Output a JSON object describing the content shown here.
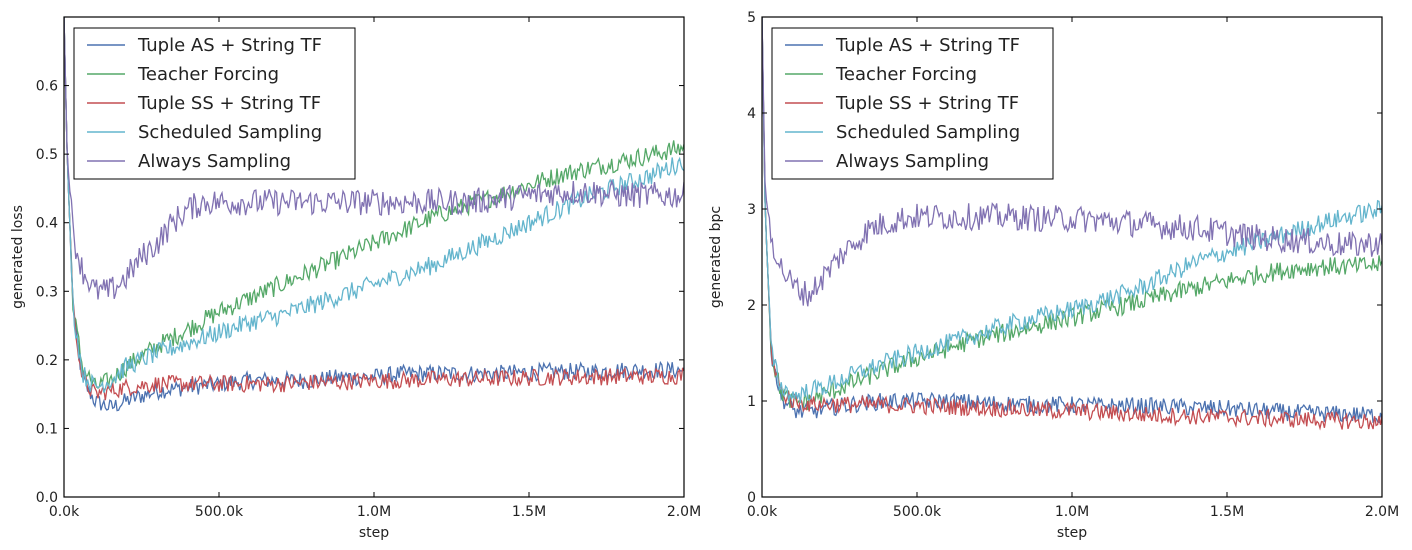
{
  "chart_data": [
    {
      "type": "line",
      "xlabel": "step",
      "ylabel": "generated loss",
      "xlim": [
        0,
        2000000
      ],
      "ylim": [
        0,
        0.7
      ],
      "xticks": [
        0,
        500000,
        1000000,
        1500000,
        2000000
      ],
      "xtick_labels": [
        "0.0k",
        "500.0k",
        "1.0M",
        "1.5M",
        "2.0M"
      ],
      "yticks": [
        0.0,
        0.1,
        0.2,
        0.3,
        0.4,
        0.5,
        0.6
      ],
      "ytick_labels": [
        "0.0",
        "0.1",
        "0.2",
        "0.3",
        "0.4",
        "0.5",
        "0.6"
      ],
      "legend_position": "upper-left",
      "series": [
        {
          "name": "Tuple AS + String TF",
          "color": "#4c72b0",
          "x": [
            0,
            10000,
            30000,
            60000,
            100000,
            150000,
            200000,
            300000,
            400000,
            500000,
            600000,
            700000,
            800000,
            900000,
            1000000,
            1100000,
            1200000,
            1300000,
            1400000,
            1500000,
            1600000,
            1700000,
            1800000,
            1900000,
            2000000
          ],
          "y": [
            0.7,
            0.5,
            0.27,
            0.17,
            0.14,
            0.13,
            0.14,
            0.155,
            0.16,
            0.165,
            0.17,
            0.17,
            0.17,
            0.175,
            0.175,
            0.18,
            0.18,
            0.18,
            0.18,
            0.182,
            0.183,
            0.183,
            0.185,
            0.185,
            0.185
          ]
        },
        {
          "name": "Teacher Forcing",
          "color": "#55a868",
          "x": [
            0,
            10000,
            30000,
            60000,
            100000,
            150000,
            200000,
            300000,
            400000,
            500000,
            600000,
            700000,
            800000,
            900000,
            1000000,
            1100000,
            1200000,
            1300000,
            1400000,
            1500000,
            1600000,
            1700000,
            1800000,
            1900000,
            2000000
          ],
          "y": [
            0.7,
            0.5,
            0.27,
            0.19,
            0.16,
            0.17,
            0.19,
            0.22,
            0.245,
            0.27,
            0.29,
            0.31,
            0.33,
            0.35,
            0.37,
            0.39,
            0.41,
            0.425,
            0.44,
            0.455,
            0.47,
            0.48,
            0.49,
            0.5,
            0.51
          ]
        },
        {
          "name": "Tuple SS + String TF",
          "color": "#c44e52",
          "x": [
            0,
            10000,
            30000,
            60000,
            100000,
            150000,
            200000,
            300000,
            400000,
            500000,
            600000,
            700000,
            800000,
            900000,
            1000000,
            1100000,
            1200000,
            1300000,
            1400000,
            1500000,
            1600000,
            1700000,
            1800000,
            1900000,
            2000000
          ],
          "y": [
            0.7,
            0.5,
            0.27,
            0.17,
            0.15,
            0.155,
            0.16,
            0.165,
            0.165,
            0.165,
            0.165,
            0.165,
            0.167,
            0.168,
            0.17,
            0.17,
            0.172,
            0.172,
            0.173,
            0.174,
            0.175,
            0.175,
            0.176,
            0.176,
            0.177
          ]
        },
        {
          "name": "Scheduled Sampling",
          "color": "#64b5cd",
          "x": [
            0,
            10000,
            30000,
            60000,
            100000,
            150000,
            200000,
            300000,
            400000,
            500000,
            600000,
            700000,
            800000,
            900000,
            1000000,
            1100000,
            1200000,
            1300000,
            1400000,
            1500000,
            1600000,
            1700000,
            1800000,
            1900000,
            2000000
          ],
          "y": [
            0.7,
            0.5,
            0.27,
            0.18,
            0.16,
            0.17,
            0.19,
            0.21,
            0.225,
            0.24,
            0.255,
            0.265,
            0.28,
            0.295,
            0.31,
            0.325,
            0.34,
            0.36,
            0.38,
            0.4,
            0.42,
            0.44,
            0.455,
            0.47,
            0.49
          ]
        },
        {
          "name": "Always Sampling",
          "color": "#8172b2",
          "x": [
            0,
            10000,
            30000,
            60000,
            100000,
            150000,
            200000,
            250000,
            300000,
            350000,
            400000,
            450000,
            500000,
            600000,
            700000,
            800000,
            900000,
            1000000,
            1100000,
            1200000,
            1300000,
            1400000,
            1500000,
            1600000,
            1700000,
            1800000,
            1900000,
            2000000
          ],
          "y": [
            0.7,
            0.5,
            0.38,
            0.33,
            0.3,
            0.3,
            0.32,
            0.35,
            0.37,
            0.4,
            0.42,
            0.43,
            0.43,
            0.43,
            0.43,
            0.43,
            0.43,
            0.43,
            0.43,
            0.43,
            0.43,
            0.435,
            0.44,
            0.445,
            0.445,
            0.44,
            0.44,
            0.44
          ]
        }
      ]
    },
    {
      "type": "line",
      "xlabel": "step",
      "ylabel": "generated bpc",
      "xlim": [
        0,
        2000000
      ],
      "ylim": [
        0,
        5
      ],
      "xticks": [
        0,
        500000,
        1000000,
        1500000,
        2000000
      ],
      "xtick_labels": [
        "0.0k",
        "500.0k",
        "1.0M",
        "1.5M",
        "2.0M"
      ],
      "yticks": [
        0,
        1,
        2,
        3,
        4,
        5
      ],
      "ytick_labels": [
        "0",
        "1",
        "2",
        "3",
        "4",
        "5"
      ],
      "legend_position": "upper-left",
      "series": [
        {
          "name": "Tuple AS + String TF",
          "color": "#4c72b0",
          "x": [
            0,
            10000,
            30000,
            60000,
            100000,
            150000,
            200000,
            300000,
            400000,
            500000,
            600000,
            700000,
            800000,
            900000,
            1000000,
            1100000,
            1200000,
            1300000,
            1400000,
            1500000,
            1600000,
            1700000,
            1800000,
            1900000,
            2000000
          ],
          "y": [
            5,
            3.0,
            1.5,
            1.05,
            0.9,
            0.88,
            0.92,
            0.97,
            1.0,
            1.0,
            1.0,
            0.98,
            0.97,
            0.96,
            0.96,
            0.95,
            0.95,
            0.94,
            0.93,
            0.92,
            0.9,
            0.88,
            0.87,
            0.86,
            0.85
          ]
        },
        {
          "name": "Teacher Forcing",
          "color": "#55a868",
          "x": [
            0,
            10000,
            30000,
            60000,
            100000,
            150000,
            200000,
            300000,
            400000,
            500000,
            600000,
            700000,
            800000,
            900000,
            1000000,
            1100000,
            1200000,
            1300000,
            1400000,
            1500000,
            1600000,
            1700000,
            1800000,
            1900000,
            2000000
          ],
          "y": [
            5,
            3.0,
            1.5,
            1.1,
            0.98,
            1.0,
            1.07,
            1.2,
            1.33,
            1.45,
            1.55,
            1.65,
            1.72,
            1.8,
            1.87,
            1.95,
            2.02,
            2.1,
            2.18,
            2.25,
            2.32,
            2.37,
            2.4,
            2.4,
            2.42
          ]
        },
        {
          "name": "Tuple SS + String TF",
          "color": "#c44e52",
          "x": [
            0,
            10000,
            30000,
            60000,
            100000,
            150000,
            200000,
            300000,
            400000,
            500000,
            600000,
            700000,
            800000,
            900000,
            1000000,
            1100000,
            1200000,
            1300000,
            1400000,
            1500000,
            1600000,
            1700000,
            1800000,
            1900000,
            2000000
          ],
          "y": [
            5,
            3.0,
            1.5,
            1.1,
            1.0,
            0.97,
            0.97,
            0.96,
            0.96,
            0.95,
            0.94,
            0.93,
            0.92,
            0.9,
            0.9,
            0.88,
            0.86,
            0.85,
            0.84,
            0.83,
            0.82,
            0.81,
            0.8,
            0.79,
            0.78
          ]
        },
        {
          "name": "Scheduled Sampling",
          "color": "#64b5cd",
          "x": [
            0,
            10000,
            30000,
            60000,
            100000,
            150000,
            200000,
            300000,
            400000,
            500000,
            600000,
            700000,
            800000,
            900000,
            1000000,
            1100000,
            1200000,
            1300000,
            1400000,
            1500000,
            1600000,
            1700000,
            1800000,
            1900000,
            2000000
          ],
          "y": [
            5,
            3.0,
            1.5,
            1.15,
            1.05,
            1.1,
            1.15,
            1.28,
            1.4,
            1.5,
            1.6,
            1.7,
            1.8,
            1.88,
            1.95,
            2.05,
            2.15,
            2.3,
            2.45,
            2.55,
            2.65,
            2.75,
            2.85,
            2.93,
            3.0
          ]
        },
        {
          "name": "Always Sampling",
          "color": "#8172b2",
          "x": [
            0,
            10000,
            30000,
            60000,
            100000,
            150000,
            200000,
            250000,
            300000,
            350000,
            400000,
            450000,
            500000,
            600000,
            700000,
            800000,
            900000,
            1000000,
            1100000,
            1200000,
            1300000,
            1400000,
            1500000,
            1600000,
            1700000,
            1800000,
            1900000,
            2000000
          ],
          "y": [
            5,
            3.2,
            2.7,
            2.4,
            2.2,
            2.1,
            2.3,
            2.5,
            2.65,
            2.8,
            2.85,
            2.9,
            2.92,
            2.92,
            2.92,
            2.92,
            2.9,
            2.9,
            2.88,
            2.85,
            2.82,
            2.8,
            2.75,
            2.7,
            2.68,
            2.65,
            2.62,
            2.65
          ]
        }
      ]
    }
  ]
}
